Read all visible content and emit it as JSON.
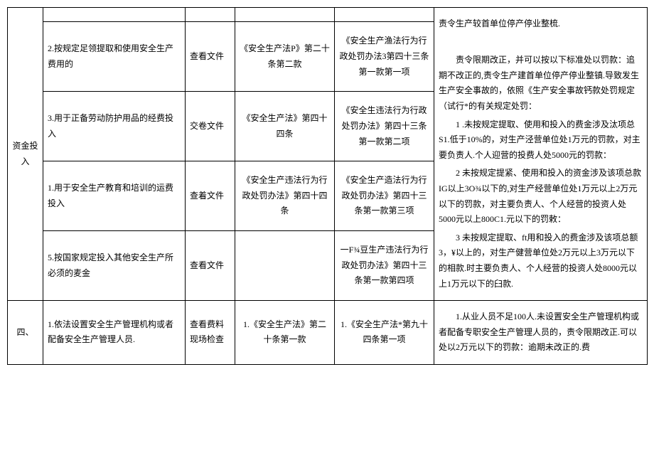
{
  "section1": {
    "col1": "资金投入",
    "consequence_top": "责令生产较首单位停产停业整梳.",
    "rows": [
      {
        "item": "2.按规定足领提取和使用安全生产费用的",
        "method": "查看文件",
        "basis": "《安全生产法P》第二十条第二款",
        "ref": "《安全生产渔法行为行政处罚办法3第四十三条第一款第一项"
      },
      {
        "item": "3.用于正备劳动防护用品的经费投入",
        "method": "交卷文件",
        "basis": "《安全生产法》第四十四条",
        "ref": "《安全生违法行为行政处罚办法》第四十三条第一款第二项"
      },
      {
        "item": "1.用于安全生产教育和培训的运费投入",
        "method": "查着文件",
        "basis": "《安全生产违法行为行政处罚办法》第四十四条",
        "ref": "《安全生产造法行为行政处罚办法》第四十三条第一款第三项"
      },
      {
        "item": "5.按国家规定投入其他安全生产所必须的麦金",
        "method": "查看文件",
        "basis": "",
        "ref": "一F¾豆生产违法行为行政处罚办法》第四十三条第一款第四项"
      }
    ],
    "consequence_body": {
      "p1": "责令限期改正，并可以按以下标准处以罚款：追期不改正的,责令生产建首单位停产停业整镇.导致发生生产安全事故的，依照《生产安全事故钙款处罚规定（试行*的有关规定处罚：",
      "p2": "1 .未按规定提取、使用和投入的费金涉及汰项总S1.低于10%的，对生产泾营单位处1万元的罚款，对主要负责人.个人迎营的投费人处5000元的罚款：",
      "p3": "2 未按规定提紧、使用和投入的资金涉及该项总款IG以上3O¾以下的,对生产经营单位处1万元以上2万元以下的罚款，对主要负责人、个人经营的投资人处5000元以上800C1.元以下的罚敕：",
      "p4": "3 未按规定提取、ft用和投入的费金涉及该项总额3，¥以上的，对生产健营单位处2万元以上3万元以下的相款.时主要负责人、个人经营的投资人处8000元以上1万元以下的臼款."
    }
  },
  "section2": {
    "col1": "四、",
    "item": "1.依法设置安全生产管理机构或者配备安全生产管理人员.",
    "method": "查看费料\n现场检查",
    "basis": "1.《安全生产法》第二十条第一款",
    "ref": "1.《安全生产法*第九十四条第一项",
    "consequence": "1.从业人员不足100人.未设置安全生产管理机构或者配备专职安全生产管理人员的，责令限期改正.可以处以2万元以下的罚款：逾期未改正的.费"
  }
}
